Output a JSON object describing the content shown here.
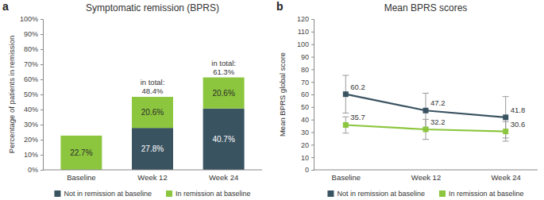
{
  "chart_data": [
    {
      "type": "bar",
      "panel": "a",
      "title": "Symptomatic remission (BPRS)",
      "y_label": "Percentage of patients in remission",
      "categories": [
        "Baseline",
        "Week 12",
        "Week 24"
      ],
      "stacked": true,
      "data_labels": true,
      "grid": false,
      "legend": "bottom",
      "ylim": [
        0,
        100
      ],
      "yticks": [
        {
          "value": 0,
          "label": "0%"
        },
        {
          "value": 10,
          "label": "10%"
        },
        {
          "value": 20,
          "label": "20%"
        },
        {
          "value": 30,
          "label": "30%"
        },
        {
          "value": 40,
          "label": "40%"
        },
        {
          "value": 50,
          "label": "50%"
        },
        {
          "value": 60,
          "label": "60%"
        },
        {
          "value": 70,
          "label": "70%"
        },
        {
          "value": 80,
          "label": "80%"
        },
        {
          "value": 90,
          "label": "90%"
        },
        {
          "value": 100,
          "label": "100%"
        }
      ],
      "series": [
        {
          "name": "Not in remission at baseline",
          "color": "#3a5361",
          "values": [
            null,
            27.8,
            40.7
          ],
          "value_labels": [
            null,
            "27.8%",
            "40.7%"
          ]
        },
        {
          "name": "In remission at baseline",
          "color": "#8cc63e",
          "values": [
            22.7,
            20.6,
            20.6
          ],
          "value_labels": [
            "22.7%",
            "20.6%",
            "20.6%"
          ]
        }
      ],
      "annotations": [
        {
          "text": "in total:",
          "category": "Week 12",
          "value": 48.4,
          "label": "48.4%"
        },
        {
          "text": "in total:",
          "category": "Week 24",
          "value": 61.3,
          "label": "61.3%"
        }
      ]
    },
    {
      "type": "line",
      "panel": "b",
      "title": "Mean BPRS scores",
      "y_label": "Mean BPRS global score",
      "categories": [
        "Baseline",
        "Week 12",
        "Week 24"
      ],
      "data_labels": true,
      "grid": false,
      "legend": "bottom",
      "ylim": [
        0,
        120
      ],
      "yticks": [
        0,
        10,
        20,
        30,
        40,
        50,
        60,
        70,
        80,
        90,
        100,
        110,
        120
      ],
      "series": [
        {
          "name": "Not in remission at baseline",
          "color": "#3a5361",
          "marker": "square",
          "line_style": "solid",
          "values": [
            60.2,
            47.2,
            41.8
          ],
          "errors": [
            15.0,
            13.8,
            16.5
          ]
        },
        {
          "name": "In remission at baseline",
          "color": "#8cc63e",
          "marker": "square",
          "line_style": "solid",
          "values": [
            35.7,
            32.2,
            30.6
          ],
          "errors": [
            6.5,
            8.0,
            7.8
          ]
        }
      ]
    }
  ]
}
